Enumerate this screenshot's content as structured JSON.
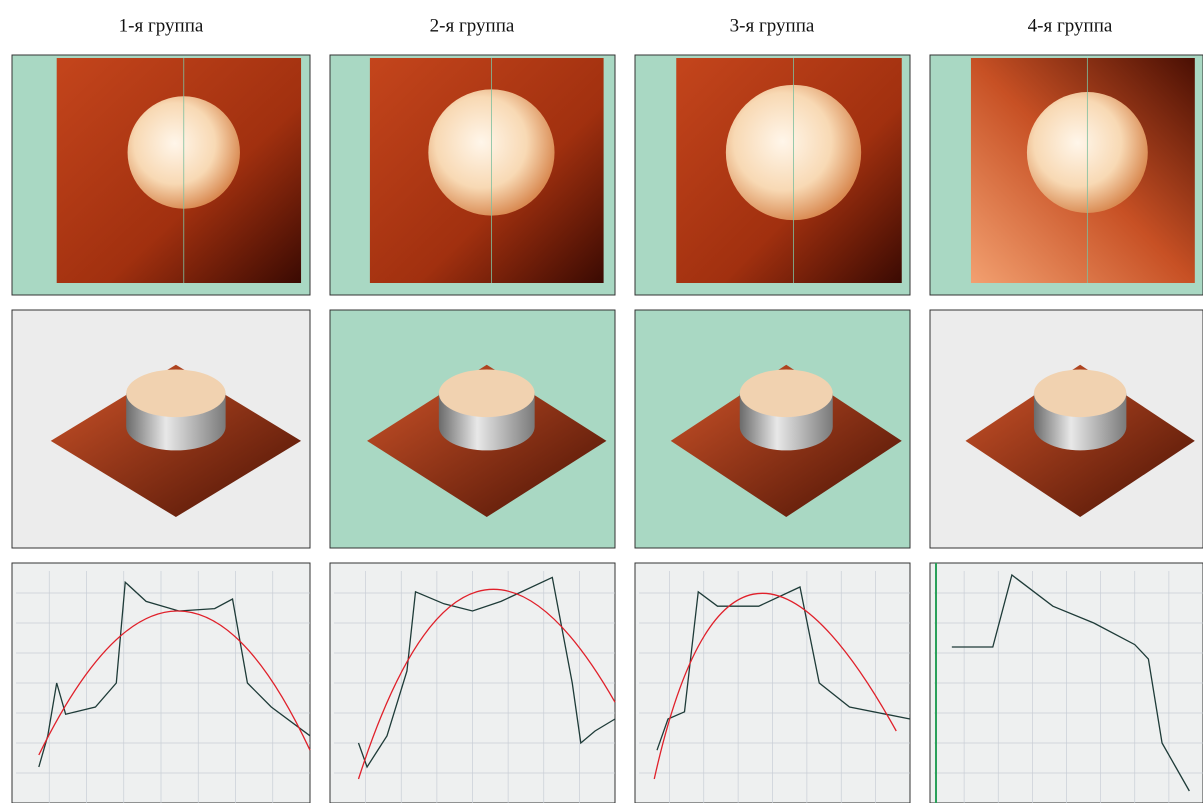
{
  "columns": [
    {
      "title": "1-я группа"
    },
    {
      "title": "2-я группа"
    },
    {
      "title": "3-я группа"
    },
    {
      "title": "4-я группа"
    }
  ]
}
